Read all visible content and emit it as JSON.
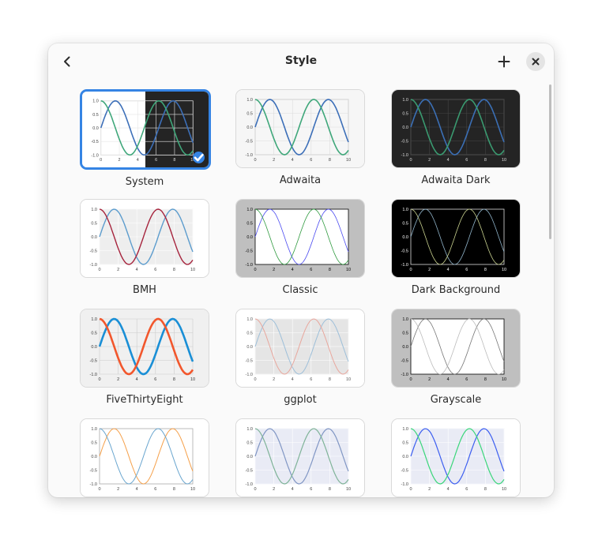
{
  "dialog": {
    "title": "Style",
    "back_icon": "go-previous-icon",
    "add_icon": "list-add-icon",
    "close_icon": "window-close-icon"
  },
  "styles": [
    {
      "name": "System",
      "selected": true
    },
    {
      "name": "Adwaita",
      "selected": false
    },
    {
      "name": "Adwaita Dark",
      "selected": false
    },
    {
      "name": "BMH",
      "selected": false
    },
    {
      "name": "Classic",
      "selected": false
    },
    {
      "name": "Dark Background",
      "selected": false
    },
    {
      "name": "FiveThirtyEight",
      "selected": false
    },
    {
      "name": "ggplot",
      "selected": false
    },
    {
      "name": "Grayscale",
      "selected": false
    },
    {
      "name": "",
      "selected": false
    },
    {
      "name": "",
      "selected": false
    },
    {
      "name": "",
      "selected": false
    }
  ],
  "preview": {
    "x_ticks": [
      "0",
      "2",
      "4",
      "6",
      "8",
      "10"
    ],
    "y_ticks": [
      "1.0",
      "0.5",
      "0.0",
      "-0.5",
      "-1.0"
    ]
  },
  "colors": {
    "accent": "#3584e4",
    "adwaita_blue": "#3c6fb8",
    "adwaita_green": "#3fa77a",
    "bmh_blue": "#5c9ccd",
    "bmh_red": "#a6243d",
    "fte_blue": "#1a8fd6",
    "fte_red": "#f2572d"
  }
}
